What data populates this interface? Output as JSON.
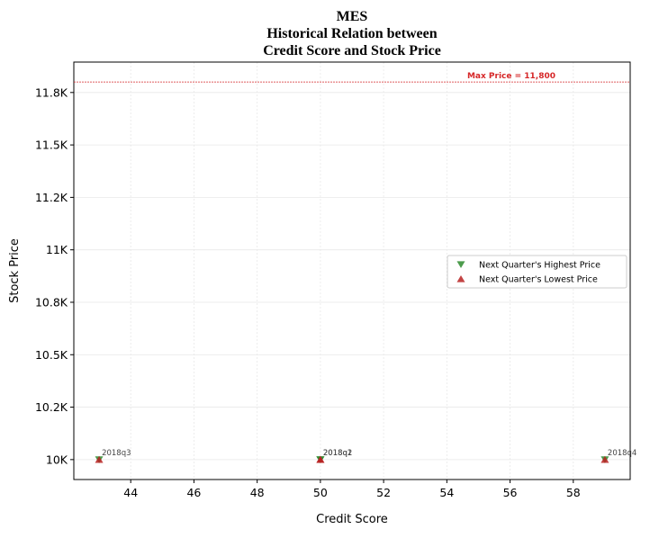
{
  "chart_data": {
    "type": "scatter",
    "title": [
      "MES",
      "Historical Relation between",
      "Credit Score and Stock Price"
    ],
    "x_label": "Credit Score",
    "y_label": "Stock Price",
    "x": [
      43,
      50,
      50,
      59
    ],
    "point_labels": [
      "2018q3",
      "2018q1",
      "2018q2",
      "2018q4"
    ],
    "series": [
      {
        "name": "Next Quarter's Highest Price",
        "color": "#2e8b2e",
        "marker": "triangle-down",
        "values": [
          10000,
          10000,
          10000,
          10000
        ]
      },
      {
        "name": "Next Quarter's Lowest Price",
        "color": "#b82222",
        "marker": "triangle-up",
        "values": [
          10000,
          10000,
          10000,
          10000
        ]
      }
    ],
    "xlim": [
      42.2,
      59.8
    ],
    "xticks": [
      44,
      46,
      48,
      50,
      52,
      54,
      56,
      58
    ],
    "ylim": [
      9905,
      11895
    ],
    "yticks": [
      {
        "value": 10000,
        "label": "10K"
      },
      {
        "value": 10250,
        "label": "10.2K"
      },
      {
        "value": 10500,
        "label": "10.5K"
      },
      {
        "value": 10750,
        "label": "10.8K"
      },
      {
        "value": 11000,
        "label": "11K"
      },
      {
        "value": 11250,
        "label": "11.2K"
      },
      {
        "value": 11500,
        "label": "11.5K"
      },
      {
        "value": 11750,
        "label": "11.8K"
      }
    ],
    "annotation": {
      "text": "Max Price = 11,800",
      "y": 11800,
      "color": "#d62728"
    },
    "grid": true,
    "legend": "right"
  }
}
